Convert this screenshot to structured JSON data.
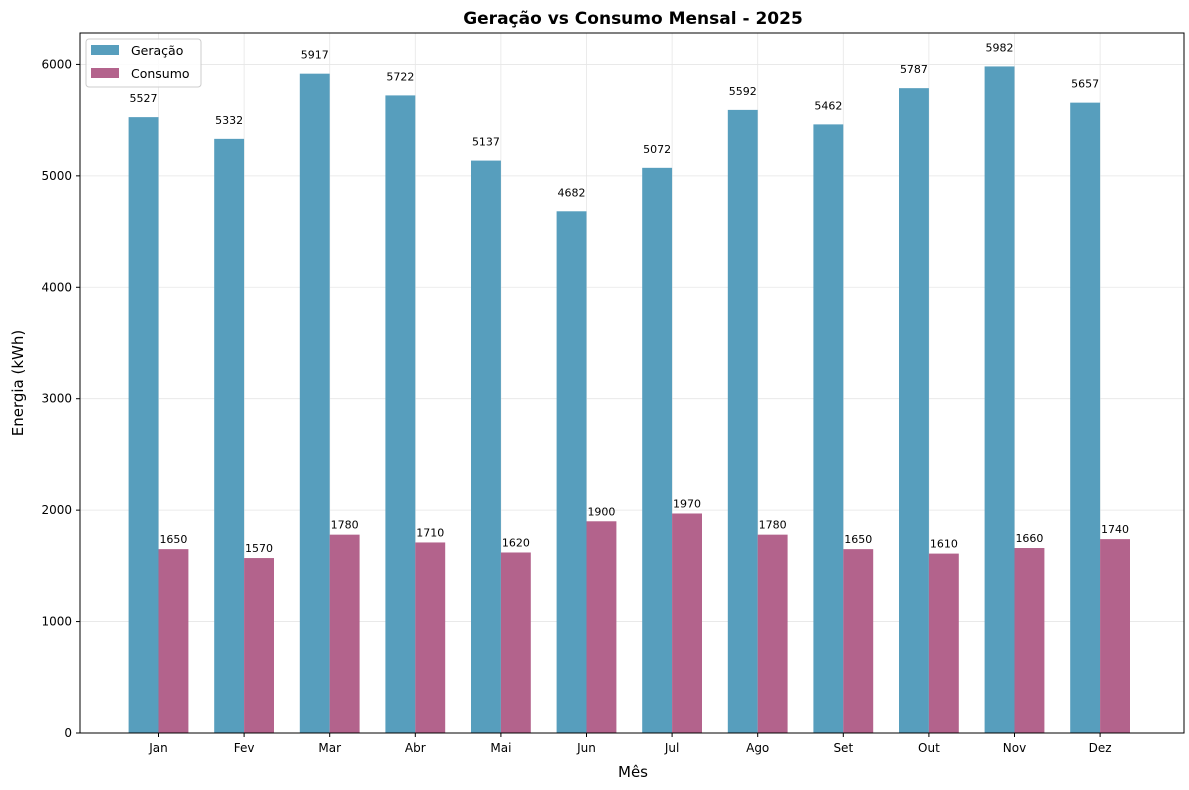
{
  "chart_data": {
    "type": "bar",
    "title": "Geração vs Consumo Mensal - 2025",
    "xlabel": "Mês",
    "ylabel": "Energia (kWh)",
    "categories": [
      "Jan",
      "Fev",
      "Mar",
      "Abr",
      "Mai",
      "Jun",
      "Jul",
      "Ago",
      "Set",
      "Out",
      "Nov",
      "Dez"
    ],
    "series": [
      {
        "name": "Geração",
        "color": "#579EBD",
        "values": [
          5527,
          5332,
          5917,
          5722,
          5137,
          4682,
          5072,
          5592,
          5462,
          5787,
          5982,
          5657
        ]
      },
      {
        "name": "Consumo",
        "color": "#B3638C",
        "values": [
          1650,
          1570,
          1780,
          1710,
          1620,
          1900,
          1970,
          1780,
          1650,
          1610,
          1660,
          1740
        ]
      }
    ],
    "ylim": [
      0,
      6282
    ],
    "yticks": [
      0,
      1000,
      2000,
      3000,
      4000,
      5000,
      6000
    ],
    "grid": true,
    "legend_position": "top-left",
    "data_labels": true
  }
}
